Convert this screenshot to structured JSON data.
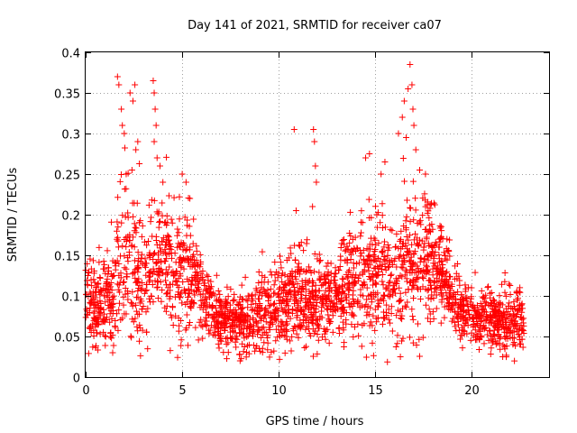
{
  "chart_data": {
    "type": "scatter",
    "title": "Day 141 of 2021, SRMTID for receiver ca07",
    "xlabel": "GPS time / hours",
    "ylabel": "SRMTID / TECUs",
    "xlim": [
      0,
      24
    ],
    "ylim": [
      0,
      0.4
    ],
    "xticks": [
      0,
      5,
      10,
      15,
      20
    ],
    "xtick_labels": [
      "0",
      "5",
      "10",
      "15",
      "20"
    ],
    "yticks": [
      0,
      0.05,
      0.1,
      0.15,
      0.2,
      0.25,
      0.3,
      0.35,
      0.4
    ],
    "ytick_labels": [
      "0",
      "0.05",
      "0.1",
      "0.15",
      "0.2",
      "0.25",
      "0.3",
      "0.35",
      "0.4"
    ],
    "grid": true,
    "marker": "plus",
    "color": "#ff0000",
    "series_profile_note": "dense scatter of SRMTID samples across 0-22.7 h",
    "envelope": {
      "x": [
        0,
        0.5,
        1,
        1.5,
        1.8,
        2.2,
        2.6,
        3,
        3.5,
        4,
        4.5,
        5,
        5.5,
        6,
        7,
        8,
        9,
        10,
        11,
        11.5,
        12,
        13,
        14,
        14.5,
        15,
        15.5,
        16,
        16.5,
        17,
        17.5,
        18,
        18.5,
        19,
        19.5,
        20,
        21,
        22,
        22.7
      ],
      "median": [
        0.11,
        0.08,
        0.09,
        0.11,
        0.15,
        0.14,
        0.13,
        0.12,
        0.13,
        0.14,
        0.13,
        0.13,
        0.12,
        0.1,
        0.07,
        0.065,
        0.075,
        0.09,
        0.1,
        0.095,
        0.09,
        0.1,
        0.12,
        0.13,
        0.12,
        0.12,
        0.12,
        0.14,
        0.15,
        0.15,
        0.14,
        0.13,
        0.1,
        0.08,
        0.075,
        0.07,
        0.065,
        0.07
      ],
      "spread": [
        0.04,
        0.03,
        0.04,
        0.05,
        0.08,
        0.07,
        0.06,
        0.05,
        0.05,
        0.05,
        0.05,
        0.05,
        0.04,
        0.03,
        0.025,
        0.025,
        0.03,
        0.035,
        0.04,
        0.04,
        0.035,
        0.035,
        0.045,
        0.05,
        0.05,
        0.05,
        0.05,
        0.06,
        0.06,
        0.05,
        0.05,
        0.04,
        0.03,
        0.025,
        0.025,
        0.025,
        0.025,
        0.025
      ]
    },
    "outliers": [
      {
        "x": 1.65,
        "y": 0.37
      },
      {
        "x": 1.72,
        "y": 0.36
      },
      {
        "x": 1.85,
        "y": 0.33
      },
      {
        "x": 1.9,
        "y": 0.31
      },
      {
        "x": 2.0,
        "y": 0.3
      },
      {
        "x": 2.3,
        "y": 0.35
      },
      {
        "x": 2.45,
        "y": 0.34
      },
      {
        "x": 2.55,
        "y": 0.36
      },
      {
        "x": 2.6,
        "y": 0.28
      },
      {
        "x": 2.7,
        "y": 0.29
      },
      {
        "x": 2.1,
        "y": 0.25
      },
      {
        "x": 2.4,
        "y": 0.255
      },
      {
        "x": 3.5,
        "y": 0.365
      },
      {
        "x": 3.55,
        "y": 0.35
      },
      {
        "x": 3.6,
        "y": 0.33
      },
      {
        "x": 3.65,
        "y": 0.31
      },
      {
        "x": 3.55,
        "y": 0.29
      },
      {
        "x": 3.7,
        "y": 0.27
      },
      {
        "x": 3.85,
        "y": 0.26
      },
      {
        "x": 4.0,
        "y": 0.24
      },
      {
        "x": 5.0,
        "y": 0.25
      },
      {
        "x": 5.2,
        "y": 0.24
      },
      {
        "x": 5.4,
        "y": 0.22
      },
      {
        "x": 10.8,
        "y": 0.305
      },
      {
        "x": 11.8,
        "y": 0.305
      },
      {
        "x": 11.85,
        "y": 0.29
      },
      {
        "x": 11.9,
        "y": 0.26
      },
      {
        "x": 11.95,
        "y": 0.24
      },
      {
        "x": 11.75,
        "y": 0.21
      },
      {
        "x": 10.9,
        "y": 0.205
      },
      {
        "x": 14.5,
        "y": 0.27
      },
      {
        "x": 14.7,
        "y": 0.275
      },
      {
        "x": 15.3,
        "y": 0.25
      },
      {
        "x": 15.5,
        "y": 0.265
      },
      {
        "x": 16.2,
        "y": 0.3
      },
      {
        "x": 16.4,
        "y": 0.32
      },
      {
        "x": 16.5,
        "y": 0.34
      },
      {
        "x": 16.7,
        "y": 0.355
      },
      {
        "x": 16.8,
        "y": 0.385
      },
      {
        "x": 16.9,
        "y": 0.36
      },
      {
        "x": 16.95,
        "y": 0.33
      },
      {
        "x": 17.0,
        "y": 0.31
      },
      {
        "x": 16.6,
        "y": 0.295
      },
      {
        "x": 17.1,
        "y": 0.28
      },
      {
        "x": 17.3,
        "y": 0.255
      },
      {
        "x": 17.6,
        "y": 0.25
      },
      {
        "x": 16.3,
        "y": 0.025
      },
      {
        "x": 8.0,
        "y": 0.02
      },
      {
        "x": 1.4,
        "y": 0.03
      },
      {
        "x": 21.6,
        "y": 0.025
      }
    ]
  }
}
